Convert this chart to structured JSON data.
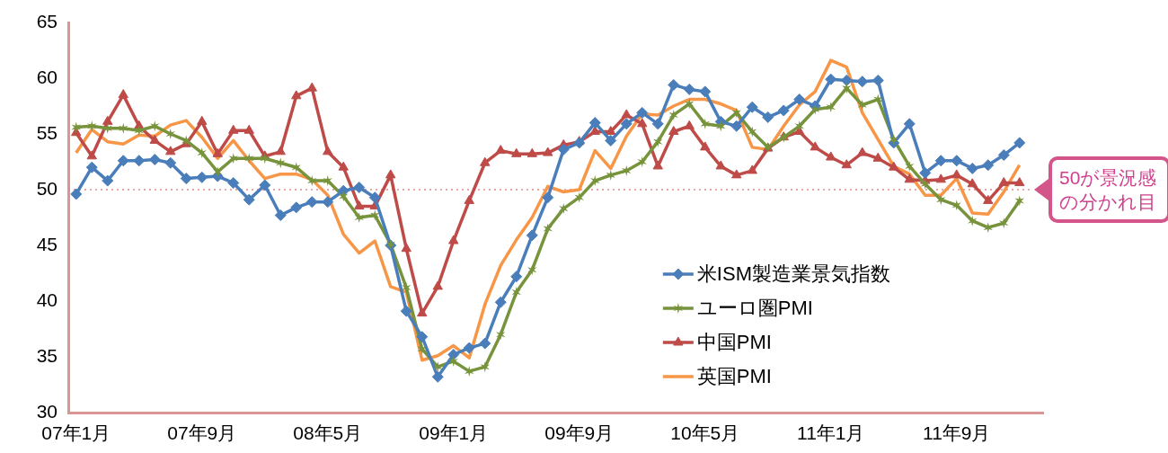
{
  "chart_data": {
    "type": "line",
    "categories": [
      "07年1月",
      null,
      null,
      null,
      null,
      null,
      null,
      null,
      "07年9月",
      null,
      null,
      null,
      null,
      null,
      null,
      null,
      "08年5月",
      null,
      null,
      null,
      null,
      null,
      null,
      null,
      "09年1月",
      null,
      null,
      null,
      null,
      null,
      null,
      null,
      "09年9月",
      null,
      null,
      null,
      null,
      null,
      null,
      null,
      "10年5月",
      null,
      null,
      null,
      null,
      null,
      null,
      null,
      "11年1月",
      null,
      null,
      null,
      null,
      null,
      null,
      null,
      "11年9月",
      null,
      null,
      null,
      null,
      null
    ],
    "series": [
      {
        "name": "米ISM製造業景気指数",
        "color": "#4a7ebb",
        "marker": "diamond",
        "values": [
          49.6,
          52.0,
          50.8,
          52.6,
          52.6,
          52.7,
          52.4,
          51.0,
          51.1,
          51.2,
          50.6,
          49.1,
          50.4,
          47.7,
          48.4,
          48.9,
          48.9,
          49.9,
          50.2,
          49.3,
          45.0,
          39.1,
          36.8,
          33.2,
          35.2,
          35.8,
          36.2,
          39.9,
          42.2,
          45.9,
          49.3,
          53.6,
          54.2,
          56.0,
          54.4,
          55.9,
          56.9,
          55.9,
          59.4,
          59.0,
          58.8,
          56.1,
          55.7,
          57.4,
          56.5,
          57.1,
          58.1,
          57.5,
          59.9,
          59.8,
          59.7,
          59.8,
          54.2,
          55.9,
          51.5,
          52.6,
          52.6,
          51.9,
          52.2,
          53.1,
          54.2,
          null
        ]
      },
      {
        "name": "ユーロ圏PMI",
        "color": "#77933c",
        "marker": "cross",
        "values": [
          55.6,
          55.7,
          55.5,
          55.5,
          55.3,
          55.7,
          55.0,
          54.4,
          53.3,
          51.6,
          52.8,
          52.8,
          52.8,
          52.4,
          52.0,
          50.8,
          50.8,
          49.4,
          47.5,
          47.7,
          45.1,
          41.2,
          35.7,
          34.1,
          34.6,
          33.7,
          34.1,
          37.0,
          40.8,
          42.8,
          46.5,
          48.3,
          49.3,
          50.8,
          51.3,
          51.7,
          52.5,
          54.3,
          56.7,
          57.7,
          55.9,
          55.7,
          56.9,
          55.2,
          53.8,
          54.7,
          55.7,
          57.2,
          57.4,
          59.1,
          57.6,
          58.1,
          54.5,
          52.1,
          50.5,
          49.1,
          48.6,
          47.2,
          46.6,
          47.0,
          49.0,
          null
        ]
      },
      {
        "name": "中国PMI",
        "color": "#be4b48",
        "marker": "triangle",
        "values": [
          55.1,
          53.0,
          56.1,
          58.5,
          55.7,
          54.4,
          53.4,
          54.1,
          56.1,
          53.2,
          55.3,
          55.3,
          53.0,
          53.4,
          58.4,
          59.1,
          53.4,
          52.0,
          48.5,
          48.5,
          51.3,
          44.7,
          38.9,
          41.3,
          45.4,
          49.0,
          52.4,
          53.5,
          53.2,
          53.2,
          53.3,
          54.0,
          54.3,
          55.2,
          55.2,
          56.7,
          55.9,
          52.1,
          55.2,
          55.7,
          53.8,
          52.1,
          51.3,
          51.7,
          53.7,
          54.7,
          55.2,
          53.8,
          52.9,
          52.2,
          53.3,
          52.8,
          52.0,
          50.9,
          50.8,
          50.9,
          51.3,
          50.5,
          49.0,
          50.6,
          50.6,
          null
        ]
      },
      {
        "name": "英国PMI",
        "color": "#f79646",
        "marker": "none",
        "values": [
          53.3,
          55.4,
          54.3,
          54.1,
          54.9,
          54.8,
          55.8,
          56.2,
          54.7,
          52.8,
          54.4,
          52.6,
          51.0,
          51.4,
          51.4,
          50.9,
          49.5,
          46.0,
          44.3,
          45.4,
          41.3,
          40.8,
          34.7,
          35.1,
          36.0,
          34.9,
          39.7,
          43.2,
          45.5,
          47.5,
          50.3,
          49.8,
          50.0,
          53.5,
          51.9,
          54.8,
          56.8,
          56.7,
          57.5,
          58.1,
          58.1,
          57.7,
          57.1,
          53.8,
          53.6,
          55.7,
          57.6,
          58.8,
          61.6,
          61.0,
          56.9,
          54.5,
          52.1,
          51.4,
          49.5,
          49.5,
          51.0,
          47.9,
          47.8,
          49.8,
          52.2,
          null
        ]
      }
    ],
    "ylim": [
      30,
      65
    ],
    "yticks": [
      30,
      35,
      40,
      45,
      50,
      55,
      60,
      65
    ],
    "ref_lines": [
      {
        "axis": "y",
        "value": 50,
        "label": "50が景況感の分かれ目",
        "color": "#e08a8a",
        "line_style": "dotted"
      }
    ],
    "legend": "bottom right"
  }
}
